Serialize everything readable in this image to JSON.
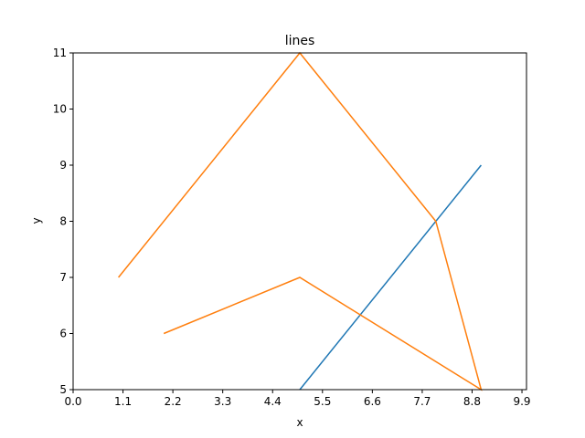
{
  "chart_data": {
    "type": "line",
    "title": "lines",
    "xlabel": "x",
    "ylabel": "y",
    "xlim": [
      0,
      10
    ],
    "ylim": [
      5,
      11
    ],
    "grid": false,
    "xticks": [
      "0.0",
      "1.1",
      "2.2",
      "3.3",
      "4.4",
      "5.5",
      "6.6",
      "7.7",
      "8.8",
      "9.9"
    ],
    "yticks": [
      "5",
      "6",
      "7",
      "8",
      "9",
      "10",
      "11"
    ],
    "series": [
      {
        "color": "#1f77b4",
        "points": [
          [
            5,
            5
          ],
          [
            9,
            9
          ]
        ]
      },
      {
        "color": "#ff7f0e",
        "points": [
          [
            1,
            7
          ],
          [
            5,
            11
          ],
          [
            8,
            8
          ],
          [
            9,
            5
          ],
          [
            5,
            7
          ],
          [
            2,
            6
          ]
        ]
      }
    ]
  }
}
